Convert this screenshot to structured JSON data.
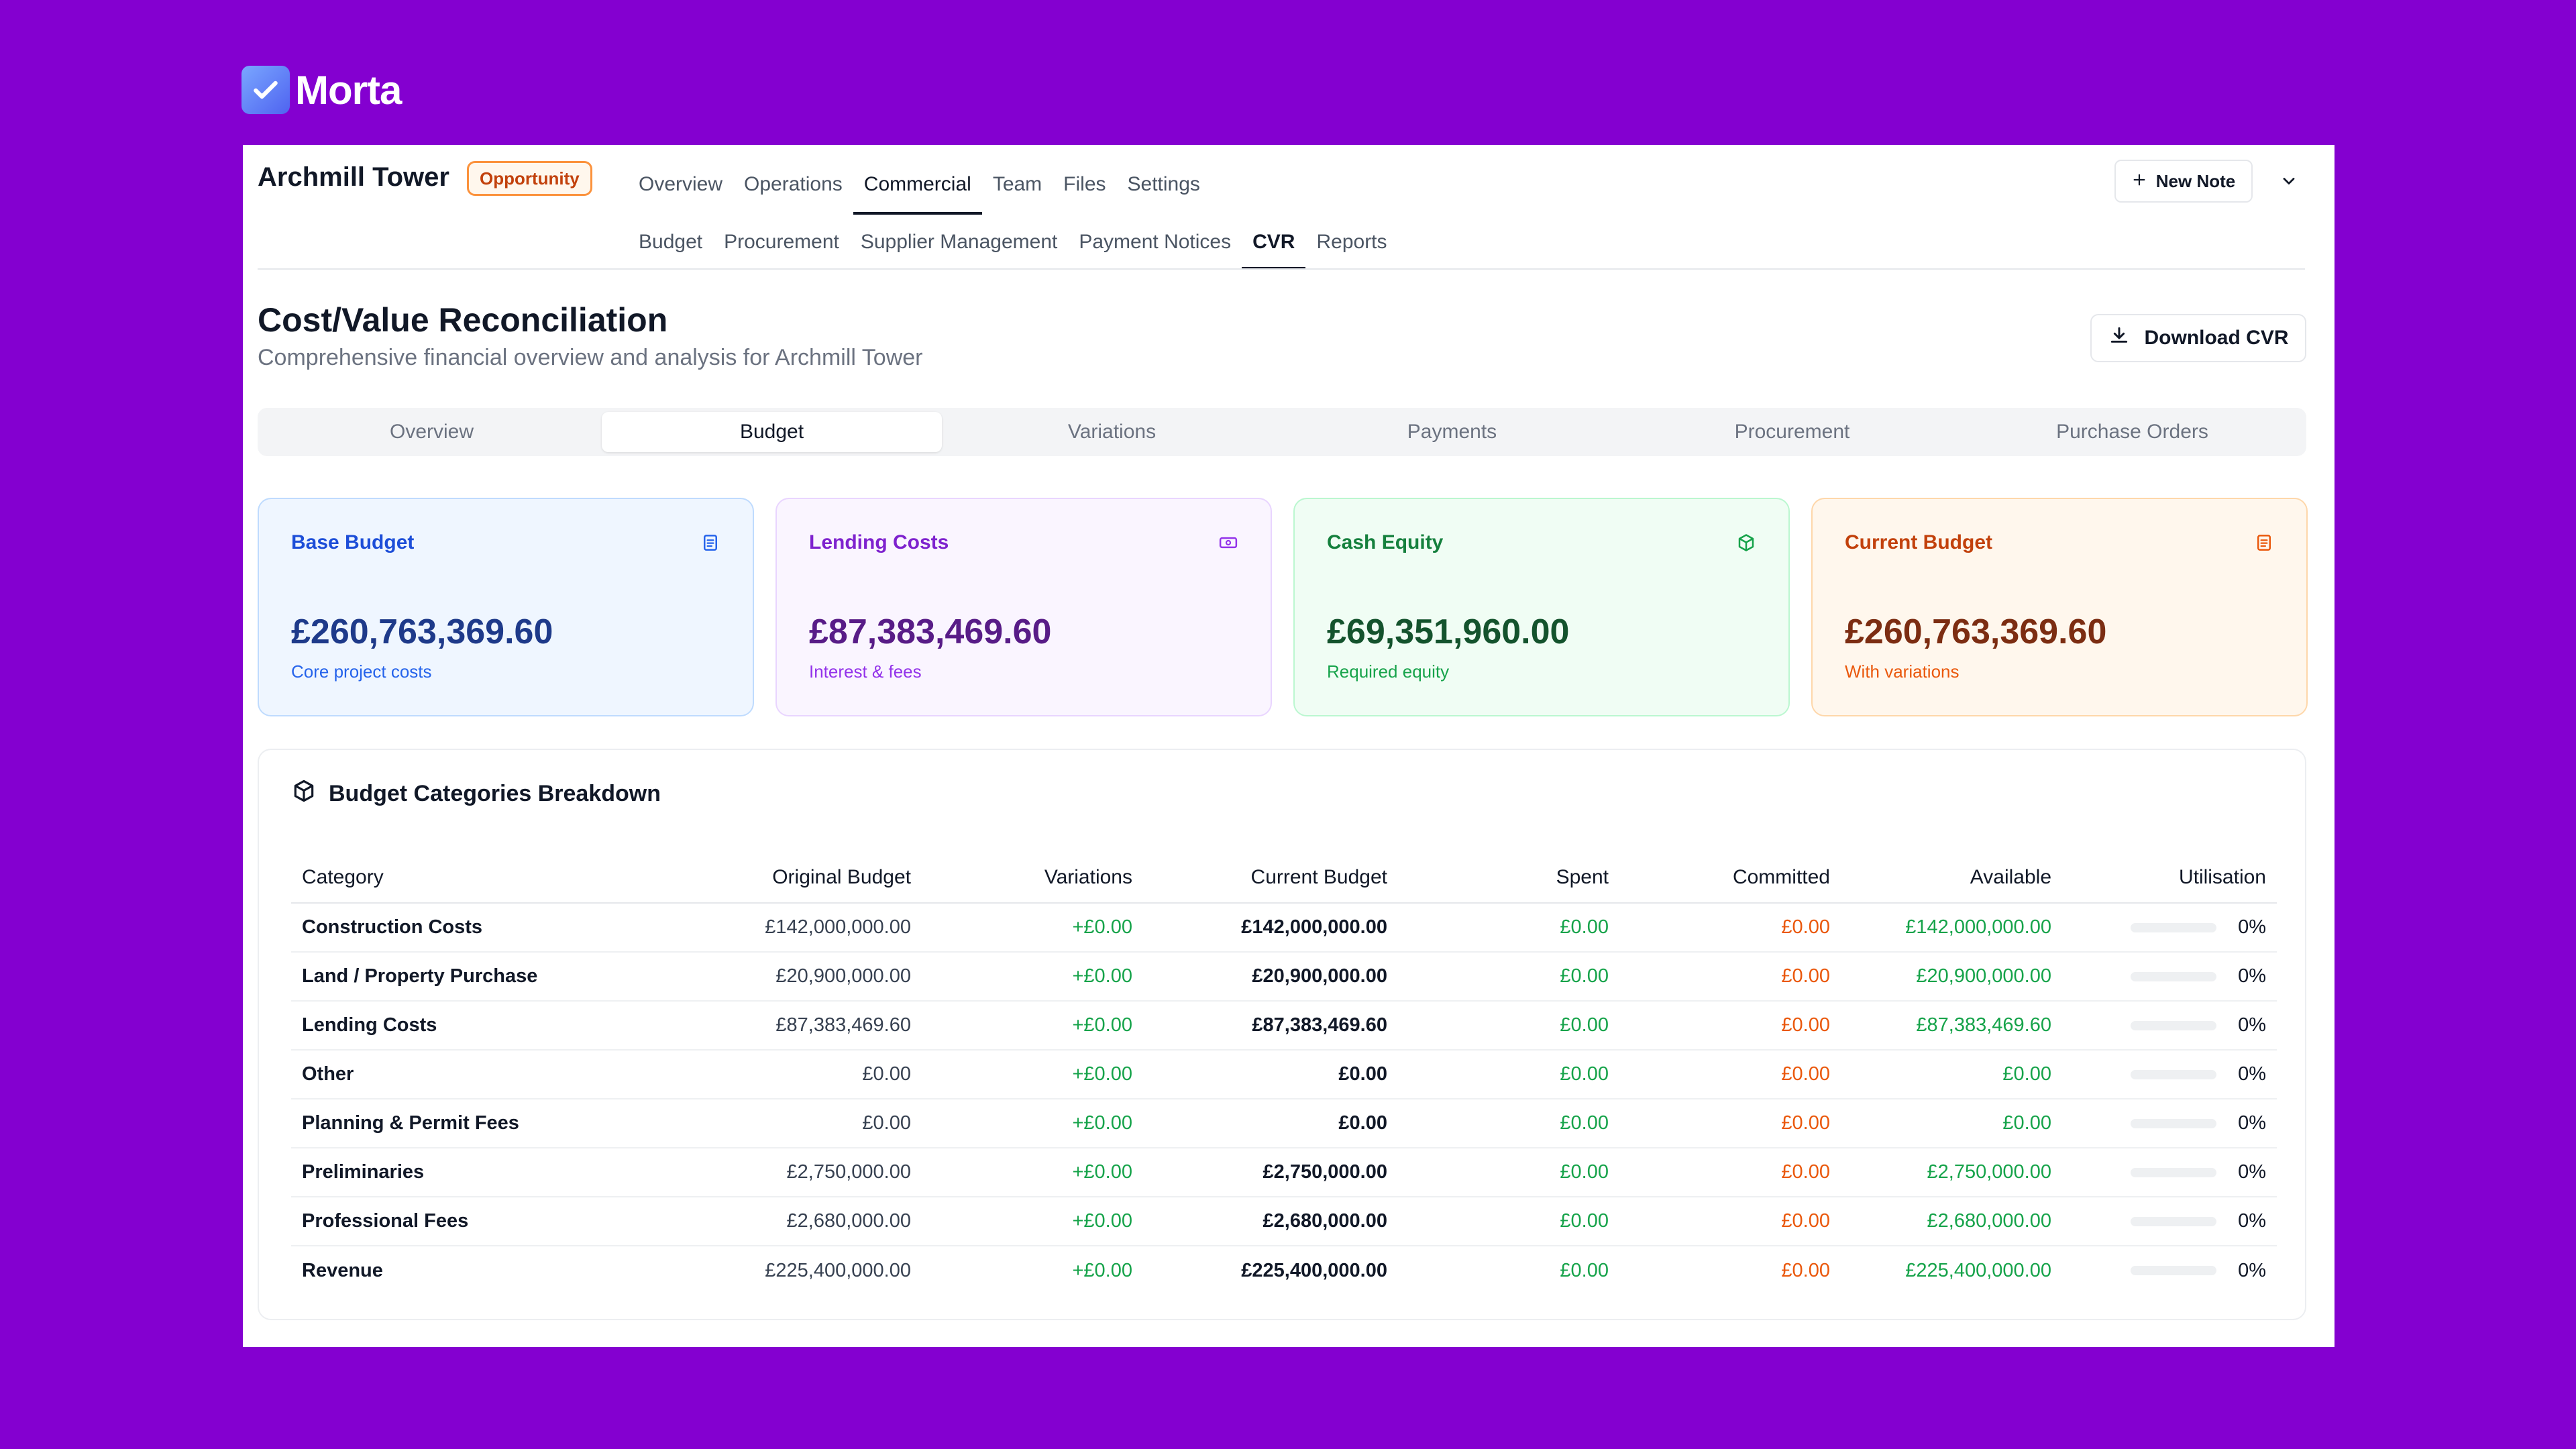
{
  "brand": {
    "name": "Morta"
  },
  "header": {
    "project_title": "Archmill Tower",
    "status": "Opportunity",
    "main_tabs": [
      {
        "label": "Overview",
        "active": false
      },
      {
        "label": "Operations",
        "active": false
      },
      {
        "label": "Commercial",
        "active": true
      },
      {
        "label": "Team",
        "active": false
      },
      {
        "label": "Files",
        "active": false
      },
      {
        "label": "Settings",
        "active": false
      }
    ],
    "sub_tabs": [
      {
        "label": "Budget",
        "active": false
      },
      {
        "label": "Procurement",
        "active": false
      },
      {
        "label": "Supplier Management",
        "active": false
      },
      {
        "label": "Payment Notices",
        "active": false
      },
      {
        "label": "CVR",
        "active": true
      },
      {
        "label": "Reports",
        "active": false
      }
    ],
    "new_note_label": "New Note"
  },
  "page": {
    "title": "Cost/Value Reconciliation",
    "subtitle": "Comprehensive financial overview and analysis for Archmill Tower",
    "download_label": "Download CVR"
  },
  "segmented_tabs": [
    {
      "label": "Overview",
      "active": false
    },
    {
      "label": "Budget",
      "active": true
    },
    {
      "label": "Variations",
      "active": false
    },
    {
      "label": "Payments",
      "active": false
    },
    {
      "label": "Procurement",
      "active": false
    },
    {
      "label": "Purchase Orders",
      "active": false
    }
  ],
  "cards": [
    {
      "label": "Base Budget",
      "value": "£260,763,369.60",
      "note": "Core project costs",
      "icon": "clipboard-icon",
      "bg": "#eff6ff",
      "border": "#bfdbfe",
      "label_color": "#1d4ed8",
      "value_color": "#1e3a8a",
      "note_color": "#2563eb"
    },
    {
      "label": "Lending Costs",
      "value": "£87,383,469.60",
      "note": "Interest & fees",
      "icon": "money-icon",
      "bg": "#faf5ff",
      "border": "#e9d5ff",
      "label_color": "#7e22ce",
      "value_color": "#581c87",
      "note_color": "#9333ea"
    },
    {
      "label": "Cash Equity",
      "value": "£69,351,960.00",
      "note": "Required equity",
      "icon": "box-icon",
      "bg": "#f0fdf4",
      "border": "#bbf7d0",
      "label_color": "#15803d",
      "value_color": "#14532d",
      "note_color": "#16a34a"
    },
    {
      "label": "Current Budget",
      "value": "£260,763,369.60",
      "note": "With variations",
      "icon": "clipboard-icon",
      "bg": "#fff7ed",
      "border": "#fed7aa",
      "label_color": "#c2410c",
      "value_color": "#7c2d12",
      "note_color": "#ea580c"
    }
  ],
  "breakdown": {
    "title": "Budget Categories Breakdown",
    "columns": [
      "Category",
      "Original Budget",
      "Variations",
      "Current Budget",
      "Spent",
      "Committed",
      "Available",
      "Utilisation"
    ],
    "rows": [
      {
        "category": "Construction Costs",
        "original": "£142,000,000.00",
        "variations": "+£0.00",
        "current": "£142,000,000.00",
        "spent": "£0.00",
        "committed": "£0.00",
        "available": "£142,000,000.00",
        "utilisation": "0%",
        "util_value": 0
      },
      {
        "category": "Land / Property Purchase",
        "original": "£20,900,000.00",
        "variations": "+£0.00",
        "current": "£20,900,000.00",
        "spent": "£0.00",
        "committed": "£0.00",
        "available": "£20,900,000.00",
        "utilisation": "0%",
        "util_value": 0
      },
      {
        "category": "Lending Costs",
        "original": "£87,383,469.60",
        "variations": "+£0.00",
        "current": "£87,383,469.60",
        "spent": "£0.00",
        "committed": "£0.00",
        "available": "£87,383,469.60",
        "utilisation": "0%",
        "util_value": 0
      },
      {
        "category": "Other",
        "original": "£0.00",
        "variations": "+£0.00",
        "current": "£0.00",
        "spent": "£0.00",
        "committed": "£0.00",
        "available": "£0.00",
        "utilisation": "0%",
        "util_value": 0
      },
      {
        "category": "Planning & Permit Fees",
        "original": "£0.00",
        "variations": "+£0.00",
        "current": "£0.00",
        "spent": "£0.00",
        "committed": "£0.00",
        "available": "£0.00",
        "utilisation": "0%",
        "util_value": 0
      },
      {
        "category": "Preliminaries",
        "original": "£2,750,000.00",
        "variations": "+£0.00",
        "current": "£2,750,000.00",
        "spent": "£0.00",
        "committed": "£0.00",
        "available": "£2,750,000.00",
        "utilisation": "0%",
        "util_value": 0
      },
      {
        "category": "Professional Fees",
        "original": "£2,680,000.00",
        "variations": "+£0.00",
        "current": "£2,680,000.00",
        "spent": "£0.00",
        "committed": "£0.00",
        "available": "£2,680,000.00",
        "utilisation": "0%",
        "util_value": 0
      },
      {
        "category": "Revenue",
        "original": "£225,400,000.00",
        "variations": "+£0.00",
        "current": "£225,400,000.00",
        "spent": "£0.00",
        "committed": "£0.00",
        "available": "£225,400,000.00",
        "utilisation": "0%",
        "util_value": 0
      }
    ]
  }
}
